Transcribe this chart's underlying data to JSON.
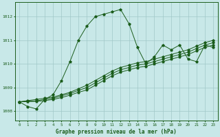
{
  "title": "Graphe pression niveau de la mer (hPa)",
  "bg_color": "#c8e8e8",
  "grid_color": "#a0c8c8",
  "line_color": "#1a5c1a",
  "xlim": [
    -0.5,
    23.5
  ],
  "ylim": [
    1007.6,
    1012.6
  ],
  "yticks": [
    1008,
    1009,
    1010,
    1011,
    1012
  ],
  "xticks": [
    0,
    1,
    2,
    3,
    4,
    5,
    6,
    7,
    8,
    9,
    10,
    11,
    12,
    13,
    14,
    15,
    16,
    17,
    18,
    19,
    20,
    21,
    22,
    23
  ],
  "series1": {
    "x": [
      0,
      1,
      2,
      3,
      4,
      5,
      6,
      7,
      8,
      9,
      10,
      11,
      12,
      13,
      14,
      15,
      16,
      17,
      18,
      19,
      20,
      21,
      22,
      23
    ],
    "y": [
      1008.4,
      1008.2,
      1008.1,
      1008.5,
      1008.7,
      1009.3,
      1010.1,
      1011.0,
      1011.6,
      1012.0,
      1012.1,
      1012.2,
      1012.3,
      1011.7,
      1010.7,
      1010.0,
      1010.3,
      1010.8,
      1010.6,
      1010.8,
      1010.2,
      1010.1,
      1010.8,
      1010.7
    ]
  },
  "series2": {
    "x": [
      0,
      1,
      2,
      3,
      4,
      5,
      6,
      7,
      8,
      9,
      10,
      11,
      12,
      13,
      14,
      15,
      16,
      17,
      18,
      19,
      20,
      21,
      22,
      23
    ],
    "y": [
      1008.4,
      1008.45,
      1008.5,
      1008.55,
      1008.6,
      1008.7,
      1008.8,
      1008.95,
      1009.1,
      1009.3,
      1009.5,
      1009.7,
      1009.85,
      1009.95,
      1010.05,
      1010.1,
      1010.2,
      1010.3,
      1010.4,
      1010.5,
      1010.6,
      1010.75,
      1010.9,
      1011.0
    ]
  },
  "series3": {
    "x": [
      0,
      1,
      2,
      3,
      4,
      5,
      6,
      7,
      8,
      9,
      10,
      11,
      12,
      13,
      14,
      15,
      16,
      17,
      18,
      19,
      20,
      21,
      22,
      23
    ],
    "y": [
      1008.4,
      1008.42,
      1008.44,
      1008.5,
      1008.55,
      1008.65,
      1008.75,
      1008.88,
      1009.0,
      1009.2,
      1009.4,
      1009.6,
      1009.75,
      1009.85,
      1009.95,
      1010.0,
      1010.1,
      1010.2,
      1010.3,
      1010.4,
      1010.5,
      1010.65,
      1010.8,
      1010.9
    ]
  },
  "series4": {
    "x": [
      0,
      1,
      2,
      3,
      4,
      5,
      6,
      7,
      8,
      9,
      10,
      11,
      12,
      13,
      14,
      15,
      16,
      17,
      18,
      19,
      20,
      21,
      22,
      23
    ],
    "y": [
      1008.4,
      1008.41,
      1008.42,
      1008.45,
      1008.5,
      1008.58,
      1008.68,
      1008.8,
      1008.9,
      1009.1,
      1009.3,
      1009.5,
      1009.65,
      1009.75,
      1009.85,
      1009.9,
      1010.0,
      1010.1,
      1010.2,
      1010.3,
      1010.4,
      1010.55,
      1010.7,
      1010.8
    ]
  }
}
